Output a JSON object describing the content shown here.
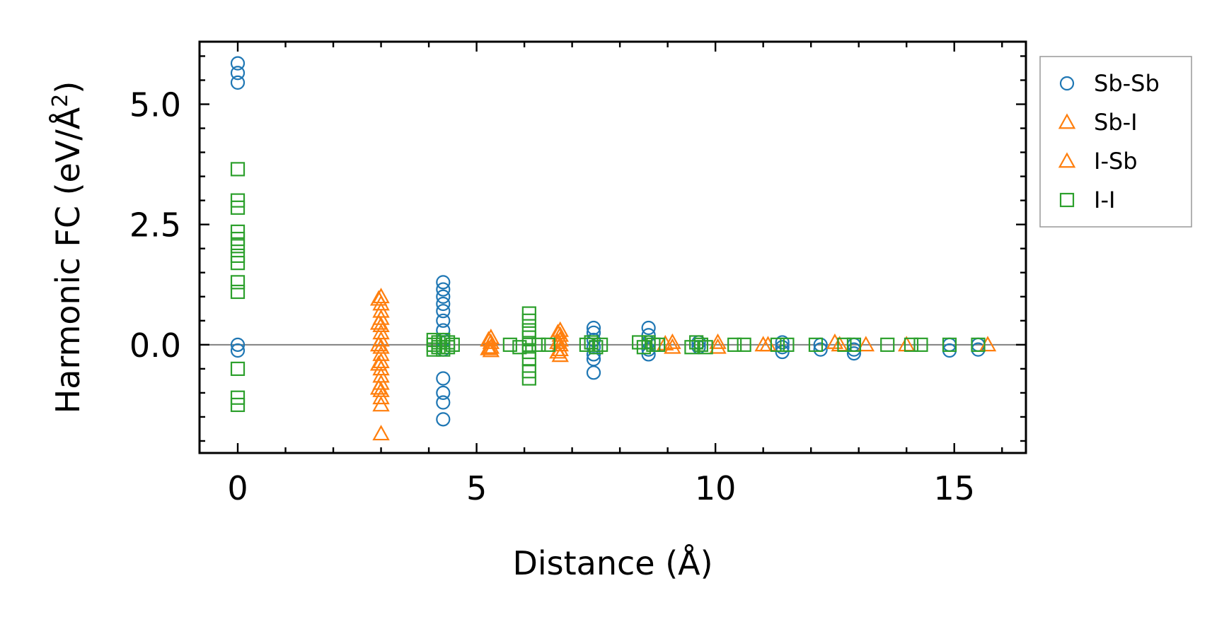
{
  "chart_data": {
    "type": "scatter",
    "title": "",
    "xlabel": "Distance (Å)",
    "ylabel_main": "Harmonic FC (eV/Å",
    "ylabel_sup": "2",
    "ylabel_close": ")",
    "xlim": [
      -0.8,
      16.5
    ],
    "ylim": [
      -2.25,
      6.3
    ],
    "xticks": [
      0,
      5,
      10,
      15
    ],
    "xtick_labels": [
      "0",
      "5",
      "10",
      "15"
    ],
    "yticks": [
      0.0,
      2.5,
      5.0
    ],
    "ytick_labels": [
      "0.0",
      "2.5",
      "5.0"
    ],
    "x_minor_step": 1,
    "y_minor_step": 0.5,
    "zero_line": true,
    "legend_location": "outside-top-right",
    "series": [
      {
        "name": "Sb-Sb",
        "marker": "circle",
        "color": "#1f77b4",
        "points": [
          [
            0,
            5.85
          ],
          [
            0,
            5.65
          ],
          [
            0,
            5.45
          ],
          [
            0,
            0.0
          ],
          [
            0,
            -0.12
          ],
          [
            4.3,
            1.3
          ],
          [
            4.3,
            1.15
          ],
          [
            4.3,
            1.0
          ],
          [
            4.3,
            0.85
          ],
          [
            4.3,
            0.7
          ],
          [
            4.3,
            0.5
          ],
          [
            4.3,
            0.3
          ],
          [
            4.3,
            0.1
          ],
          [
            4.3,
            -0.1
          ],
          [
            4.3,
            -0.7
          ],
          [
            4.3,
            -1.0
          ],
          [
            4.3,
            -1.2
          ],
          [
            4.3,
            -1.55
          ],
          [
            7.45,
            0.35
          ],
          [
            7.45,
            0.25
          ],
          [
            7.45,
            0.1
          ],
          [
            7.45,
            -0.05
          ],
          [
            7.45,
            -0.2
          ],
          [
            7.45,
            -0.3
          ],
          [
            7.45,
            -0.58
          ],
          [
            8.6,
            0.35
          ],
          [
            8.6,
            0.2
          ],
          [
            8.6,
            0.05
          ],
          [
            8.6,
            -0.1
          ],
          [
            8.6,
            -0.2
          ],
          [
            9.65,
            0.05
          ],
          [
            9.65,
            -0.05
          ],
          [
            11.4,
            0.05
          ],
          [
            11.4,
            -0.05
          ],
          [
            11.4,
            -0.15
          ],
          [
            12.2,
            0.0
          ],
          [
            12.2,
            -0.1
          ],
          [
            12.9,
            0.0
          ],
          [
            12.9,
            -0.1
          ],
          [
            12.9,
            -0.18
          ],
          [
            14.9,
            0.0
          ],
          [
            14.9,
            -0.12
          ],
          [
            15.5,
            0.0
          ],
          [
            15.5,
            -0.1
          ]
        ]
      },
      {
        "name": "Sb-I",
        "marker": "triangle",
        "color": "#ff7f0e",
        "points": [
          [
            3.0,
            1.0
          ],
          [
            3.0,
            0.85
          ],
          [
            3.0,
            0.7
          ],
          [
            3.0,
            0.55
          ],
          [
            3.0,
            0.4
          ],
          [
            3.0,
            0.25
          ],
          [
            3.0,
            0.1
          ],
          [
            3.0,
            -0.05
          ],
          [
            3.0,
            -0.2
          ],
          [
            3.0,
            -0.35
          ],
          [
            3.0,
            -0.5
          ],
          [
            3.0,
            -0.65
          ],
          [
            3.0,
            -0.8
          ],
          [
            3.0,
            -0.95
          ],
          [
            3.0,
            -1.1
          ],
          [
            3.0,
            -1.25
          ],
          [
            3.0,
            -1.85
          ],
          [
            5.3,
            0.15
          ],
          [
            5.3,
            0.05
          ],
          [
            5.3,
            -0.05
          ],
          [
            5.3,
            -0.12
          ],
          [
            6.75,
            0.3
          ],
          [
            6.75,
            0.2
          ],
          [
            6.75,
            0.1
          ],
          [
            6.75,
            0.0
          ],
          [
            6.75,
            -0.1
          ],
          [
            6.75,
            -0.22
          ],
          [
            9.1,
            0.05
          ],
          [
            9.1,
            -0.05
          ],
          [
            10.05,
            0.05
          ],
          [
            10.05,
            -0.05
          ],
          [
            11.0,
            0.0
          ],
          [
            12.5,
            0.05
          ],
          [
            13.15,
            0.0
          ],
          [
            14.0,
            0.0
          ],
          [
            15.7,
            0.0
          ]
        ]
      },
      {
        "name": "I-Sb",
        "marker": "triangle",
        "color": "#ff7f0e",
        "points": [
          [
            2.95,
            0.95
          ],
          [
            2.95,
            0.45
          ],
          [
            2.95,
            0.0
          ],
          [
            2.95,
            -0.4
          ],
          [
            2.95,
            -0.9
          ],
          [
            5.25,
            0.1
          ],
          [
            5.25,
            -0.08
          ],
          [
            6.7,
            0.25
          ],
          [
            6.7,
            0.05
          ],
          [
            6.7,
            -0.15
          ],
          [
            8.95,
            0.02
          ],
          [
            11.1,
            0.0
          ],
          [
            12.6,
            0.0
          ]
        ]
      },
      {
        "name": "I-I",
        "marker": "square",
        "color": "#2ca02c",
        "points": [
          [
            0,
            3.65
          ],
          [
            0,
            3.0
          ],
          [
            0,
            2.85
          ],
          [
            0,
            2.35
          ],
          [
            0,
            2.2
          ],
          [
            0,
            2.05
          ],
          [
            0,
            1.85
          ],
          [
            0,
            1.7
          ],
          [
            0,
            1.3
          ],
          [
            0,
            1.1
          ],
          [
            0,
            -0.5
          ],
          [
            0,
            -1.1
          ],
          [
            0,
            -1.25
          ],
          [
            4.1,
            0.1
          ],
          [
            4.1,
            0.0
          ],
          [
            4.1,
            -0.1
          ],
          [
            4.2,
            0.05
          ],
          [
            4.2,
            -0.05
          ],
          [
            4.3,
            0.1
          ],
          [
            4.3,
            -0.1
          ],
          [
            4.4,
            0.05
          ],
          [
            4.4,
            -0.05
          ],
          [
            4.5,
            0.0
          ],
          [
            5.7,
            0.0
          ],
          [
            6.1,
            0.65
          ],
          [
            6.1,
            0.5
          ],
          [
            6.1,
            0.3
          ],
          [
            6.1,
            0.15
          ],
          [
            6.1,
            0.0
          ],
          [
            6.1,
            -0.15
          ],
          [
            6.1,
            -0.3
          ],
          [
            6.1,
            -0.55
          ],
          [
            6.1,
            -0.7
          ],
          [
            5.9,
            -0.05
          ],
          [
            6.3,
            0.0
          ],
          [
            6.5,
            0.0
          ],
          [
            7.3,
            0.0
          ],
          [
            7.4,
            0.05
          ],
          [
            7.5,
            -0.05
          ],
          [
            7.6,
            0.0
          ],
          [
            8.4,
            0.05
          ],
          [
            8.5,
            -0.05
          ],
          [
            8.6,
            0.05
          ],
          [
            8.7,
            0.0
          ],
          [
            8.8,
            0.0
          ],
          [
            9.5,
            -0.05
          ],
          [
            9.6,
            0.05
          ],
          [
            9.7,
            0.0
          ],
          [
            9.8,
            -0.05
          ],
          [
            10.4,
            0.0
          ],
          [
            10.6,
            0.0
          ],
          [
            11.3,
            0.0
          ],
          [
            11.5,
            0.0
          ],
          [
            12.1,
            0.0
          ],
          [
            12.7,
            0.0
          ],
          [
            12.9,
            0.0
          ],
          [
            13.6,
            0.0
          ],
          [
            14.1,
            0.0
          ],
          [
            14.3,
            0.0
          ],
          [
            14.9,
            0.0
          ],
          [
            15.5,
            0.0
          ]
        ]
      }
    ]
  }
}
